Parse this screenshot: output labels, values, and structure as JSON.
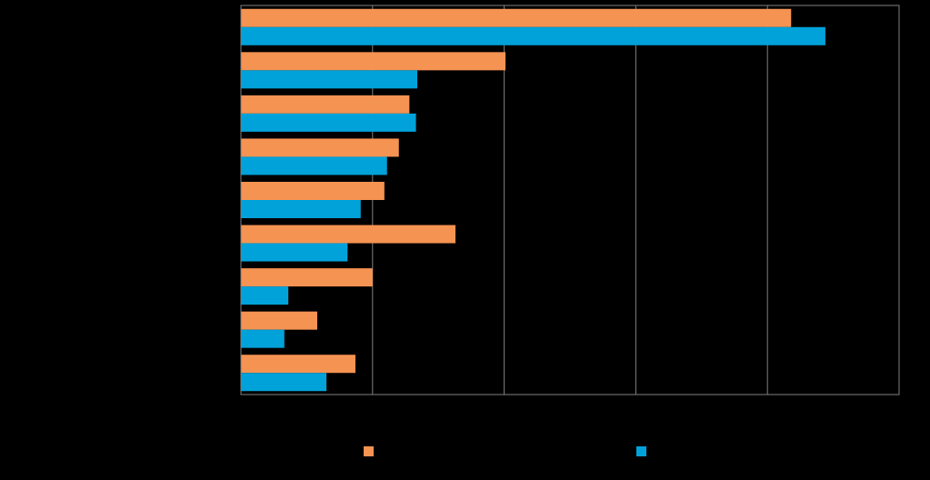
{
  "colors": {
    "background": "#000000",
    "series_1": "#F59352",
    "series_2": "#00A2D9",
    "gridline": "#808080"
  },
  "chart_data": {
    "type": "bar",
    "orientation": "horizontal",
    "title": "",
    "xlabel": "",
    "ylabel": "",
    "xlim": [
      0,
      50
    ],
    "grid": true,
    "legend_position": "bottom",
    "categories": [
      "",
      "",
      "",
      "",
      "",
      "",
      "",
      "",
      ""
    ],
    "series": [
      {
        "values": [
          41.8,
          20.1,
          12.8,
          12.0,
          10.9,
          16.3,
          10.0,
          5.8,
          8.7
        ]
      },
      {
        "values": [
          44.4,
          13.4,
          13.3,
          11.1,
          9.1,
          8.1,
          3.6,
          3.3,
          6.5
        ]
      }
    ]
  }
}
